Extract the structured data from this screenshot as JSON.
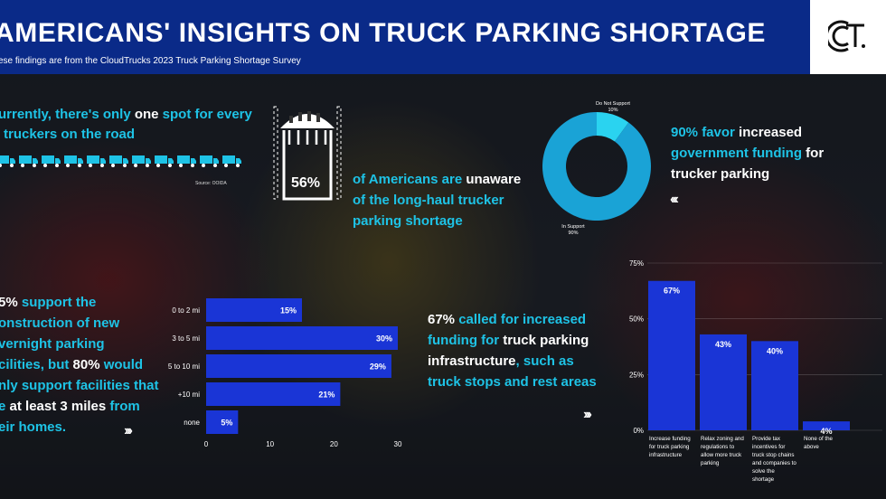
{
  "header": {
    "title": "AMERICANS' INSIGHTS ON TRUCK PARKING SHORTAGE",
    "subtitle": "ese findings are from the CloudTrucks 2023 Truck Parking Shortage Survey"
  },
  "colors": {
    "header_bg": "#0a2a88",
    "accent_cyan": "#1ec3e6",
    "bar_blue": "#1a35d6",
    "donut_dark": "#1aa3d6",
    "donut_light": "#2ad3f0"
  },
  "fact1": {
    "line1_a": "urrently, there's only ",
    "line1_b": "one",
    "line1_c": " spot for every",
    "line2_a": "",
    "line2_b": "truckers on the road",
    "truck_count": 11,
    "source": "Source: OOIDA"
  },
  "fact2": {
    "percent": "56%",
    "line1_a": "of Americans are ",
    "line1_b": "unaware",
    "line2": "of the long-haul trucker",
    "line3": "parking shortage"
  },
  "fact3": {
    "line1_a": "90% favor",
    "line1_b": " increased",
    "line2_a": "government funding",
    "line2_b": " for",
    "line3": "trucker parking"
  },
  "fact4": {
    "l1_a": "5%",
    "l1_b": " support the",
    "l2": "onstruction of new",
    "l3": "vernight parking",
    "l4_a": "cilities, but ",
    "l4_b": "80%",
    "l4_c": " would",
    "l5": "nly support facilities that",
    "l6_a": "e ",
    "l6_b": "at least 3 miles",
    "l6_c": " from",
    "l7": "eir homes."
  },
  "fact5": {
    "l1_a": "67%",
    "l1_b": " called for increased",
    "l2_a": "funding for",
    "l2_b": " truck parking",
    "l3_a": "infrastructure",
    "l3_b": ", such as",
    "l4": "truck stops and rest areas"
  },
  "chevrons": {
    "c1": "‹‹‹",
    "c2": "›››",
    "c3": "›››"
  },
  "chart_data": [
    {
      "type": "pie",
      "categories": [
        "In Support",
        "Do Not Support"
      ],
      "values": [
        90,
        10
      ],
      "labels": [
        "In Support\n90%",
        "Do Not Support\n10%"
      ]
    },
    {
      "type": "bar",
      "orientation": "horizontal",
      "categories": [
        "0 to 2 mi",
        "3 to 5 mi",
        "5 to 10 mi",
        "+10 mi",
        "none"
      ],
      "values": [
        15,
        30,
        29,
        21,
        5
      ],
      "value_labels": [
        "15%",
        "30%",
        "29%",
        "21%",
        "5%"
      ],
      "xlim": [
        0,
        30
      ],
      "xticks": [
        "0",
        "10",
        "20",
        "30"
      ]
    },
    {
      "type": "bar",
      "categories": [
        "Increase funding for truck parking infrastructure",
        "Relax zoning and regulations to allow more truck parking",
        "Provide tax incentives for truck stop chains and companies to solve the shortage",
        "None of the above"
      ],
      "category_lines": [
        [
          "Increase funding",
          "for truck parking",
          "infrastructure"
        ],
        [
          "Relax zoning and",
          "regulations to",
          "allow more truck",
          "parking"
        ],
        [
          "Provide tax",
          "incentives for",
          "truck stop chains",
          "and companies to",
          "solve the",
          "shortage"
        ],
        [
          "None of the",
          "above"
        ]
      ],
      "values": [
        67,
        43,
        40,
        4
      ],
      "value_labels": [
        "67%",
        "43%",
        "40%",
        "4%"
      ],
      "ylim": [
        0,
        75
      ],
      "yticks": [
        "0%",
        "25%",
        "50%",
        "75%"
      ],
      "grid": true
    }
  ]
}
